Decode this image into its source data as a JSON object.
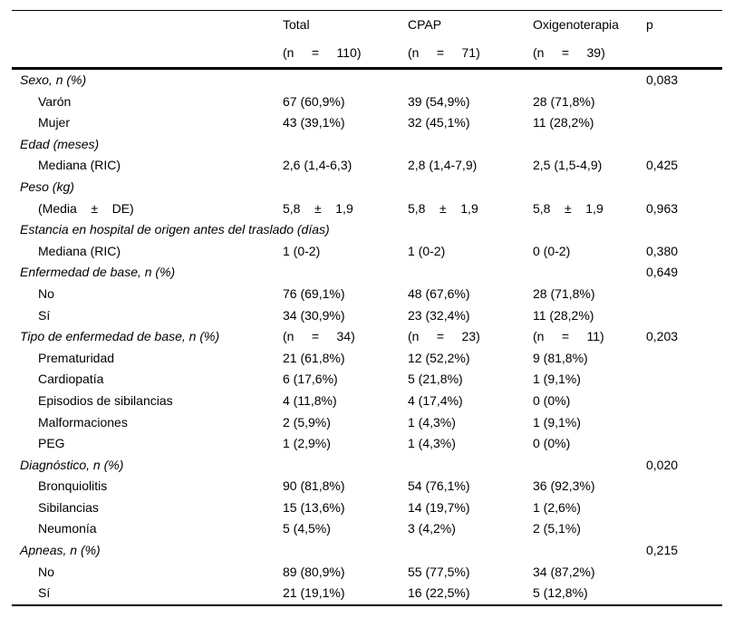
{
  "table": {
    "header": {
      "columns": [
        {
          "label": "",
          "sub": ""
        },
        {
          "label": "Total",
          "sub": "(n     =     110)"
        },
        {
          "label": "CPAP",
          "sub": "(n     =     71)"
        },
        {
          "label": "Oxigenoterapia",
          "sub": "(n     =     39)"
        },
        {
          "label": "p",
          "sub": ""
        }
      ]
    },
    "rows": [
      {
        "label": "Sexo, n (%)",
        "total": "",
        "cpap": "",
        "oxi": "",
        "p": "0,083"
      },
      {
        "label": "Varón",
        "total": "67 (60,9%)",
        "cpap": "39 (54,9%)",
        "oxi": "28 (71,8%)",
        "p": ""
      },
      {
        "label": "Mujer",
        "total": "43 (39,1%)",
        "cpap": "32 (45,1%)",
        "oxi": "11 (28,2%)",
        "p": ""
      },
      {
        "label": "Edad (meses)",
        "total": "",
        "cpap": "",
        "oxi": "",
        "p": ""
      },
      {
        "label": "Mediana (RIC)",
        "total": "2,6 (1,4-6,3)",
        "cpap": "2,8 (1,4-7,9)",
        "oxi": "2,5 (1,5-4,9)",
        "p": "0,425"
      },
      {
        "label": "Peso (kg)",
        "total": "",
        "cpap": "",
        "oxi": "",
        "p": ""
      },
      {
        "label": "(Media    ±    DE)",
        "total": "5,8    ±    1,9",
        "cpap": "5,8    ±    1,9",
        "oxi": "5,8    ±    1,9",
        "p": "0,963"
      },
      {
        "label": "Estancia en hospital de origen antes del traslado (días)",
        "total": "",
        "cpap": "",
        "oxi": "",
        "p": ""
      },
      {
        "label": "Mediana (RIC)",
        "total": "1 (0-2)",
        "cpap": "1 (0-2)",
        "oxi": "0 (0-2)",
        "p": "0,380"
      },
      {
        "label": "Enfermedad de base, n (%)",
        "total": "",
        "cpap": "",
        "oxi": "",
        "p": "0,649"
      },
      {
        "label": "No",
        "total": "76 (69,1%)",
        "cpap": "48 (67,6%)",
        "oxi": "28 (71,8%)",
        "p": ""
      },
      {
        "label": "Sí",
        "total": "34 (30,9%)",
        "cpap": "23 (32,4%)",
        "oxi": "11 (28,2%)",
        "p": ""
      },
      {
        "label": "Tipo de enfermedad de base, n (%)",
        "total": "(n     =     34)",
        "cpap": "(n     =     23)",
        "oxi": "(n     =     11)",
        "p": "0,203"
      },
      {
        "label": "Prematuridad",
        "total": "21 (61,8%)",
        "cpap": "12 (52,2%)",
        "oxi": "9 (81,8%)",
        "p": ""
      },
      {
        "label": "Cardiopatía",
        "total": "6 (17,6%)",
        "cpap": "5 (21,8%)",
        "oxi": "1 (9,1%)",
        "p": ""
      },
      {
        "label": "Episodios de sibilancias",
        "total": "4 (11,8%)",
        "cpap": "4 (17,4%)",
        "oxi": "0 (0%)",
        "p": ""
      },
      {
        "label": "Malformaciones",
        "total": "2 (5,9%)",
        "cpap": "1 (4,3%)",
        "oxi": "1 (9,1%)",
        "p": ""
      },
      {
        "label": "PEG",
        "total": "1 (2,9%)",
        "cpap": "1 (4,3%)",
        "oxi": "0 (0%)",
        "p": ""
      },
      {
        "label": "Diagnóstico, n (%)",
        "total": "",
        "cpap": "",
        "oxi": "",
        "p": "0,020"
      },
      {
        "label": "Bronquiolitis",
        "total": "90 (81,8%)",
        "cpap": "54 (76,1%)",
        "oxi": "36 (92,3%)",
        "p": ""
      },
      {
        "label": "Sibilancias",
        "total": "15 (13,6%)",
        "cpap": "14 (19,7%)",
        "oxi": "1 (2,6%)",
        "p": ""
      },
      {
        "label": "Neumonía",
        "total": "5 (4,5%)",
        "cpap": "3 (4,2%)",
        "oxi": "2 (5,1%)",
        "p": ""
      },
      {
        "label": "Apneas, n (%)",
        "total": "",
        "cpap": "",
        "oxi": "",
        "p": "0,215"
      },
      {
        "label": "No",
        "total": "89 (80,9%)",
        "cpap": "55 (77,5%)",
        "oxi": "34 (87,2%)",
        "p": ""
      },
      {
        "label": "Sí",
        "total": "21 (19,1%)",
        "cpap": "16 (22,5%)",
        "oxi": "5 (12,8%)",
        "p": ""
      }
    ]
  }
}
